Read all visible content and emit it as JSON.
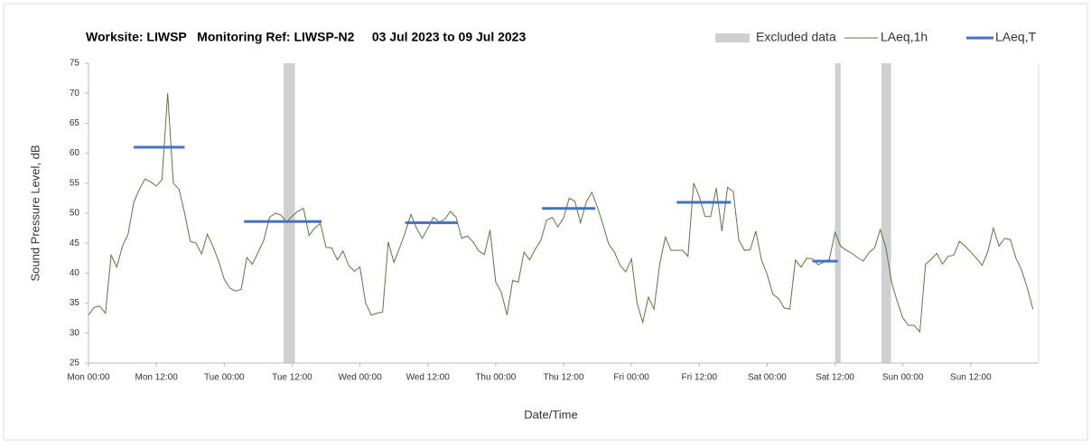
{
  "chart_data": {
    "type": "line",
    "title": "Worksite: LIWSP   Monitoring Ref: LIWSP-N2     03 Jul 2023 to 09 Jul 2023",
    "xlabel": "Date/Time",
    "ylabel": "Sound Pressure Level, dB",
    "xlim": [
      0,
      168
    ],
    "xticks": [
      {
        "value": 0,
        "label": "Mon 00:00"
      },
      {
        "value": 12,
        "label": "Mon 12:00"
      },
      {
        "value": 24,
        "label": "Tue 00:00"
      },
      {
        "value": 36,
        "label": "Tue 12:00"
      },
      {
        "value": 48,
        "label": "Wed 00:00"
      },
      {
        "value": 60,
        "label": "Wed 12:00"
      },
      {
        "value": 72,
        "label": "Thu 00:00"
      },
      {
        "value": 84,
        "label": "Thu 12:00"
      },
      {
        "value": 96,
        "label": "Fri 00:00"
      },
      {
        "value": 108,
        "label": "Fri 12:00"
      },
      {
        "value": 120,
        "label": "Sat 00:00"
      },
      {
        "value": 132,
        "label": "Sat 12:00"
      },
      {
        "value": 144,
        "label": "Sun 00:00"
      },
      {
        "value": 156,
        "label": "Sun 12:00"
      }
    ],
    "ylim": [
      25,
      75
    ],
    "yticks": [
      25,
      30,
      35,
      40,
      45,
      50,
      55,
      60,
      65,
      70,
      75
    ],
    "grid": false,
    "legend": "top-right",
    "x": [
      0,
      1,
      2,
      3,
      4,
      5,
      6,
      7,
      8,
      9,
      10,
      11,
      12,
      13,
      14,
      15,
      16,
      17,
      18,
      19,
      20,
      21,
      22,
      23,
      24,
      25,
      26,
      27,
      28,
      29,
      30,
      31,
      32,
      33,
      34,
      35,
      36,
      37,
      38,
      39,
      40,
      41,
      42,
      43,
      44,
      45,
      46,
      47,
      48,
      49,
      50,
      51,
      52,
      53,
      54,
      55,
      56,
      57,
      58,
      59,
      60,
      61,
      62,
      63,
      64,
      65,
      66,
      67,
      68,
      69,
      70,
      71,
      72,
      73,
      74,
      75,
      76,
      77,
      78,
      79,
      80,
      81,
      82,
      83,
      84,
      85,
      86,
      87,
      88,
      89,
      90,
      91,
      92,
      93,
      94,
      95,
      96,
      97,
      98,
      99,
      100,
      101,
      102,
      103,
      104,
      105,
      106,
      107,
      108,
      109,
      110,
      111,
      112,
      113,
      114,
      115,
      116,
      117,
      118,
      119,
      120,
      121,
      122,
      123,
      124,
      125,
      126,
      127,
      128,
      129,
      130,
      131,
      132,
      133,
      134,
      135,
      136,
      137,
      138,
      139,
      140,
      141,
      142,
      143,
      144,
      145,
      146,
      147,
      148,
      149,
      150,
      151,
      152,
      153,
      154,
      155,
      156,
      157,
      158,
      159,
      160,
      161,
      162,
      163,
      164,
      165,
      166,
      167
    ],
    "excluded": {
      "name": "Excluded data",
      "color": "#d0d0d0",
      "ranges": [
        [
          34.5,
          36.5
        ],
        [
          132,
          133
        ],
        [
          140.2,
          141.9
        ]
      ]
    },
    "series": [
      {
        "name": "LAeq,1h",
        "color": "#5a7a3a",
        "values": [
          33,
          34.3,
          34.5,
          33.3,
          43,
          41,
          44.5,
          46.5,
          51.8,
          54,
          55.7,
          55.2,
          54.5,
          55.6,
          70,
          55,
          54,
          50,
          45.3,
          45,
          43.2,
          46.5,
          44.5,
          42,
          39,
          37.5,
          37,
          37.3,
          42.6,
          41.5,
          43.5,
          45.5,
          49.3,
          50,
          49.7,
          48.5,
          49.5,
          50.3,
          50.8,
          46.3,
          47.5,
          48.3,
          44.3,
          44.2,
          42.2,
          43.7,
          41.3,
          40.3,
          41,
          35,
          33,
          33.3,
          33.5,
          45.2,
          41.8,
          44.2,
          46.8,
          49.8,
          47.5,
          45.8,
          47.5,
          49.3,
          48.5,
          49,
          50.3,
          49.3,
          45.8,
          46.2,
          45.2,
          43.7,
          43.1,
          47.2,
          38.5,
          36.8,
          33,
          38.8,
          38.5,
          43.5,
          42.2,
          44,
          45.5,
          48.8,
          49.3,
          47.7,
          49.2,
          52.5,
          52,
          48.4,
          51.8,
          53.5,
          51,
          48,
          44.8,
          43.5,
          41.3,
          40.2,
          42.4,
          35,
          31.8,
          36,
          34,
          41.5,
          46,
          43.8,
          43.8,
          43.8,
          42.8,
          55,
          52.8,
          49.5,
          49.4,
          54.2,
          47,
          54.3,
          53.6,
          45.5,
          43.8,
          43.9,
          47,
          42.2,
          39.8,
          36.5,
          35.8,
          34.2,
          34,
          42.2,
          41,
          42.5,
          42.4,
          41.4,
          41.8,
          42.3,
          46.8,
          44.5,
          43.8,
          43.3,
          42.6,
          42,
          43.4,
          44.2,
          47.3,
          44.2,
          38.5,
          35.3,
          32.5,
          31.3,
          31.3,
          30.2,
          41.5,
          42.3,
          43.3,
          41.5,
          42.8,
          43,
          45.3,
          44.5,
          43.5,
          42.5,
          41.3,
          43.5,
          47.5,
          44.5,
          45.8,
          45.6,
          42.5,
          40.5,
          37.5,
          34
        ]
      },
      {
        "name": "LAeq,T",
        "color": "#4472c4",
        "segments": [
          {
            "start": 8,
            "end": 17,
            "value": 61
          },
          {
            "start": 27.5,
            "end": 41.2,
            "value": 48.6
          },
          {
            "start": 56,
            "end": 65.3,
            "value": 48.4
          },
          {
            "start": 80.2,
            "end": 89.6,
            "value": 50.8
          },
          {
            "start": 104,
            "end": 113.6,
            "value": 51.8
          },
          {
            "start": 128,
            "end": 132.5,
            "value": 42
          }
        ]
      }
    ]
  }
}
